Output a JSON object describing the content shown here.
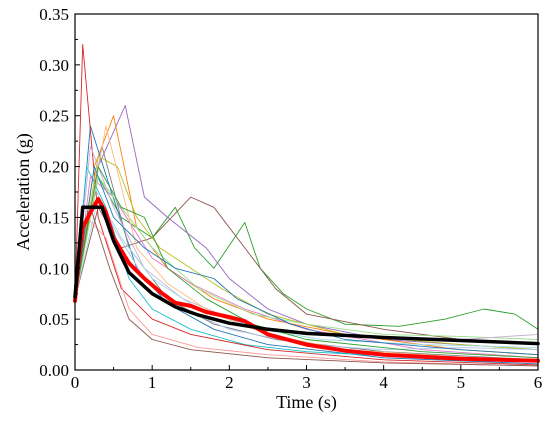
{
  "chart_data": {
    "type": "line",
    "title": "",
    "xlabel": "Time (s)",
    "ylabel": "Acceleration (g)",
    "xlim": [
      0,
      6
    ],
    "ylim": [
      0,
      0.35
    ],
    "xticks": [
      "0",
      "1",
      "2",
      "3",
      "4",
      "5",
      "6"
    ],
    "yticks": [
      "0.00",
      "0.05",
      "0.10",
      "0.15",
      "0.20",
      "0.25",
      "0.30",
      "0.35"
    ],
    "grid": false,
    "legend": "none",
    "series": [
      {
        "role": "code design spectrum",
        "color": "#000000",
        "points": [
          [
            0,
            0.072
          ],
          [
            0.1,
            0.16
          ],
          [
            0.35,
            0.16
          ],
          [
            0.5,
            0.127
          ],
          [
            0.7,
            0.096
          ],
          [
            1.0,
            0.075
          ],
          [
            1.3,
            0.062
          ],
          [
            1.6,
            0.054
          ],
          [
            2.0,
            0.046
          ],
          [
            2.5,
            0.04
          ],
          [
            3.0,
            0.036
          ],
          [
            3.5,
            0.034
          ],
          [
            4.0,
            0.032
          ],
          [
            5.0,
            0.029
          ],
          [
            6.0,
            0.026
          ]
        ]
      },
      {
        "role": "mean spectrum",
        "color": "#ff0000",
        "points": [
          [
            0,
            0.068
          ],
          [
            0.05,
            0.11
          ],
          [
            0.1,
            0.14
          ],
          [
            0.2,
            0.155
          ],
          [
            0.3,
            0.168
          ],
          [
            0.4,
            0.155
          ],
          [
            0.5,
            0.13
          ],
          [
            0.7,
            0.105
          ],
          [
            0.9,
            0.09
          ],
          [
            1.1,
            0.077
          ],
          [
            1.3,
            0.066
          ],
          [
            1.5,
            0.063
          ],
          [
            1.7,
            0.057
          ],
          [
            2.0,
            0.052
          ],
          [
            2.2,
            0.048
          ],
          [
            2.5,
            0.035
          ],
          [
            3.0,
            0.025
          ],
          [
            3.5,
            0.019
          ],
          [
            4.0,
            0.015
          ],
          [
            5.0,
            0.011
          ],
          [
            6.0,
            0.009
          ]
        ]
      },
      {
        "color": "#2ca02c",
        "points": [
          [
            0,
            0.07
          ],
          [
            0.3,
            0.19
          ],
          [
            0.6,
            0.15
          ],
          [
            1.0,
            0.13
          ],
          [
            1.3,
            0.16
          ],
          [
            1.55,
            0.12
          ],
          [
            1.8,
            0.1
          ],
          [
            2.2,
            0.145
          ],
          [
            2.4,
            0.1
          ],
          [
            2.7,
            0.075
          ],
          [
            3.0,
            0.06
          ],
          [
            3.5,
            0.045
          ],
          [
            4.2,
            0.043
          ],
          [
            4.8,
            0.05
          ],
          [
            5.3,
            0.06
          ],
          [
            5.7,
            0.055
          ],
          [
            6.0,
            0.04
          ]
        ]
      },
      {
        "color": "#8c564b",
        "points": [
          [
            0,
            0.07
          ],
          [
            0.3,
            0.16
          ],
          [
            0.6,
            0.12
          ],
          [
            1.0,
            0.13
          ],
          [
            1.5,
            0.17
          ],
          [
            1.8,
            0.16
          ],
          [
            2.2,
            0.12
          ],
          [
            2.6,
            0.08
          ],
          [
            3.0,
            0.055
          ],
          [
            4.0,
            0.04
          ],
          [
            5.0,
            0.03
          ],
          [
            6.0,
            0.025
          ]
        ]
      },
      {
        "color": "#9467bd",
        "points": [
          [
            0,
            0.07
          ],
          [
            0.3,
            0.2
          ],
          [
            0.65,
            0.26
          ],
          [
            0.9,
            0.17
          ],
          [
            1.2,
            0.15
          ],
          [
            1.7,
            0.12
          ],
          [
            2.0,
            0.09
          ],
          [
            2.5,
            0.06
          ],
          [
            3.0,
            0.045
          ],
          [
            4.0,
            0.03
          ],
          [
            5.0,
            0.025
          ],
          [
            6.0,
            0.02
          ]
        ]
      },
      {
        "color": "#ff7f0e",
        "points": [
          [
            0,
            0.07
          ],
          [
            0.25,
            0.2
          ],
          [
            0.5,
            0.25
          ],
          [
            0.8,
            0.14
          ],
          [
            1.2,
            0.1
          ],
          [
            1.8,
            0.07
          ],
          [
            2.5,
            0.05
          ],
          [
            3.5,
            0.035
          ],
          [
            5.0,
            0.02
          ],
          [
            6.0,
            0.015
          ]
        ]
      },
      {
        "color": "#1f77b4",
        "points": [
          [
            0,
            0.07
          ],
          [
            0.2,
            0.24
          ],
          [
            0.45,
            0.18
          ],
          [
            0.8,
            0.1
          ],
          [
            1.2,
            0.065
          ],
          [
            1.8,
            0.04
          ],
          [
            2.5,
            0.025
          ],
          [
            4.0,
            0.012
          ],
          [
            6.0,
            0.006
          ]
        ]
      },
      {
        "color": "#17becf",
        "points": [
          [
            0,
            0.07
          ],
          [
            0.15,
            0.2
          ],
          [
            0.4,
            0.16
          ],
          [
            0.7,
            0.09
          ],
          [
            1.0,
            0.06
          ],
          [
            1.5,
            0.04
          ],
          [
            2.2,
            0.025
          ],
          [
            3.0,
            0.018
          ],
          [
            4.5,
            0.012
          ],
          [
            6.0,
            0.01
          ]
        ]
      },
      {
        "color": "#d62728",
        "points": [
          [
            0,
            0.07
          ],
          [
            0.1,
            0.32
          ],
          [
            0.3,
            0.15
          ],
          [
            0.6,
            0.08
          ],
          [
            1.0,
            0.05
          ],
          [
            1.5,
            0.035
          ],
          [
            2.5,
            0.02
          ],
          [
            4.0,
            0.01
          ],
          [
            6.0,
            0.005
          ]
        ]
      },
      {
        "color": "#bcbd22",
        "points": [
          [
            0,
            0.07
          ],
          [
            0.3,
            0.21
          ],
          [
            0.55,
            0.2
          ],
          [
            0.8,
            0.15
          ],
          [
            1.1,
            0.12
          ],
          [
            1.5,
            0.1
          ],
          [
            1.9,
            0.08
          ],
          [
            2.5,
            0.055
          ],
          [
            3.5,
            0.035
          ],
          [
            5.0,
            0.025
          ],
          [
            6.0,
            0.02
          ]
        ]
      },
      {
        "color": "#e377c2",
        "points": [
          [
            0,
            0.07
          ],
          [
            0.2,
            0.19
          ],
          [
            0.5,
            0.17
          ],
          [
            1.0,
            0.11
          ],
          [
            1.5,
            0.085
          ],
          [
            2.2,
            0.06
          ],
          [
            3.0,
            0.04
          ],
          [
            4.5,
            0.02
          ],
          [
            6.0,
            0.012
          ]
        ]
      },
      {
        "color": "#7f7f7f",
        "points": [
          [
            0,
            0.07
          ],
          [
            0.35,
            0.22
          ],
          [
            0.7,
            0.12
          ],
          [
            1.2,
            0.07
          ],
          [
            1.8,
            0.045
          ],
          [
            2.6,
            0.03
          ],
          [
            4.0,
            0.018
          ],
          [
            6.0,
            0.01
          ]
        ]
      },
      {
        "color": "#aec7e8",
        "points": [
          [
            0,
            0.07
          ],
          [
            0.25,
            0.18
          ],
          [
            0.5,
            0.14
          ],
          [
            0.9,
            0.09
          ],
          [
            1.4,
            0.06
          ],
          [
            2.0,
            0.04
          ],
          [
            3.0,
            0.025
          ],
          [
            4.0,
            0.02
          ],
          [
            5.0,
            0.022
          ],
          [
            6.0,
            0.02
          ]
        ]
      },
      {
        "color": "#98df8a",
        "points": [
          [
            0,
            0.07
          ],
          [
            0.3,
            0.19
          ],
          [
            0.6,
            0.16
          ],
          [
            1.0,
            0.12
          ],
          [
            1.6,
            0.08
          ],
          [
            2.3,
            0.055
          ],
          [
            3.0,
            0.045
          ],
          [
            4.0,
            0.035
          ],
          [
            5.0,
            0.033
          ],
          [
            6.0,
            0.03
          ]
        ]
      },
      {
        "color": "#c5b0d5",
        "points": [
          [
            0,
            0.07
          ],
          [
            0.2,
            0.22
          ],
          [
            0.5,
            0.16
          ],
          [
            0.9,
            0.1
          ],
          [
            1.4,
            0.07
          ],
          [
            2.2,
            0.045
          ],
          [
            3.0,
            0.035
          ],
          [
            5.0,
            0.03
          ],
          [
            6.0,
            0.035
          ]
        ]
      },
      {
        "color": "#ffbb78",
        "points": [
          [
            0,
            0.07
          ],
          [
            0.4,
            0.24
          ],
          [
            0.8,
            0.12
          ],
          [
            1.2,
            0.085
          ],
          [
            1.8,
            0.055
          ],
          [
            2.5,
            0.035
          ],
          [
            3.5,
            0.02
          ],
          [
            6.0,
            0.008
          ]
        ]
      },
      {
        "color": "#ff9896",
        "points": [
          [
            0,
            0.07
          ],
          [
            0.15,
            0.15
          ],
          [
            0.4,
            0.13
          ],
          [
            0.7,
            0.06
          ],
          [
            1.0,
            0.035
          ],
          [
            1.6,
            0.022
          ],
          [
            2.5,
            0.015
          ],
          [
            4.0,
            0.008
          ],
          [
            6.0,
            0.004
          ]
        ]
      },
      {
        "color": "#9edae5",
        "points": [
          [
            0,
            0.07
          ],
          [
            0.3,
            0.17
          ],
          [
            0.6,
            0.13
          ],
          [
            1.0,
            0.09
          ],
          [
            1.6,
            0.06
          ],
          [
            2.4,
            0.04
          ],
          [
            3.2,
            0.03
          ],
          [
            4.5,
            0.025
          ],
          [
            6.0,
            0.022
          ]
        ]
      },
      {
        "color": "#8c564b",
        "points": [
          [
            0,
            0.07
          ],
          [
            0.2,
            0.16
          ],
          [
            0.45,
            0.1
          ],
          [
            0.7,
            0.05
          ],
          [
            1.0,
            0.03
          ],
          [
            1.5,
            0.02
          ],
          [
            2.5,
            0.012
          ],
          [
            4.0,
            0.007
          ],
          [
            6.0,
            0.004
          ]
        ]
      },
      {
        "color": "#2ca02c",
        "points": [
          [
            0,
            0.07
          ],
          [
            0.3,
            0.2
          ],
          [
            0.6,
            0.16
          ],
          [
            0.9,
            0.15
          ],
          [
            1.2,
            0.1
          ],
          [
            1.7,
            0.07
          ],
          [
            2.3,
            0.045
          ],
          [
            3.0,
            0.03
          ],
          [
            4.5,
            0.018
          ],
          [
            6.0,
            0.012
          ]
        ]
      },
      {
        "color": "#1f77b4",
        "points": [
          [
            0,
            0.07
          ],
          [
            0.25,
            0.2
          ],
          [
            0.5,
            0.15
          ],
          [
            0.9,
            0.12
          ],
          [
            1.3,
            0.1
          ],
          [
            1.8,
            0.09
          ],
          [
            2.1,
            0.07
          ],
          [
            2.8,
            0.045
          ],
          [
            3.5,
            0.03
          ],
          [
            5.0,
            0.02
          ],
          [
            6.0,
            0.015
          ]
        ]
      }
    ]
  }
}
